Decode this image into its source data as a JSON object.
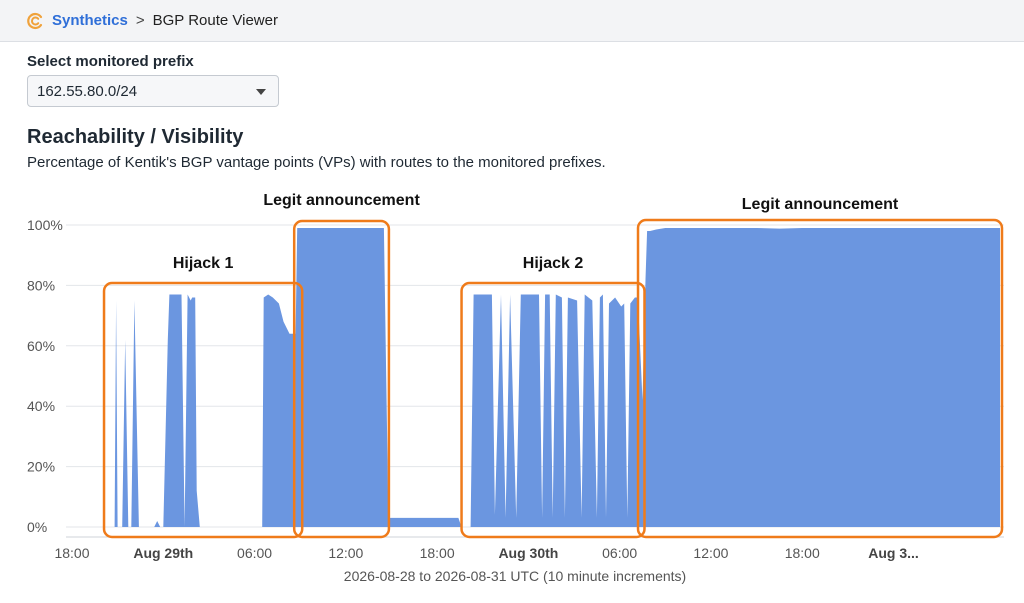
{
  "breadcrumb": {
    "app_label": "Synthetics",
    "separator": ">",
    "current": "BGP Route Viewer"
  },
  "prefix_select": {
    "label": "Select monitored prefix",
    "value": "162.55.80.0/24"
  },
  "section": {
    "title": "Reachability / Visibility",
    "description": "Percentage of Kentik's BGP vantage points (VPs) with routes to the monitored prefixes."
  },
  "colors": {
    "accent": "#2f6fd8",
    "area_fill": "#6b96e0",
    "highlight_border": "#ef7b1a",
    "grid": "#e3e6ea"
  },
  "chart_data": {
    "type": "area",
    "x_unit": "hours since 2026-08-28 18:00 UTC",
    "xlim": [
      0,
      61
    ],
    "ylim": [
      0,
      100
    ],
    "y_ticks": [
      "0%",
      "20%",
      "40%",
      "60%",
      "80%",
      "100%"
    ],
    "x_ticks": [
      {
        "x": 0,
        "label": "18:00",
        "bold": false
      },
      {
        "x": 6,
        "label": "Aug 29th",
        "bold": true
      },
      {
        "x": 12,
        "label": "06:00",
        "bold": false
      },
      {
        "x": 18,
        "label": "12:00",
        "bold": false
      },
      {
        "x": 24,
        "label": "18:00",
        "bold": false
      },
      {
        "x": 30,
        "label": "Aug 30th",
        "bold": true
      },
      {
        "x": 36,
        "label": "06:00",
        "bold": false
      },
      {
        "x": 42,
        "label": "12:00",
        "bold": false
      },
      {
        "x": 48,
        "label": "18:00",
        "bold": false
      },
      {
        "x": 54,
        "label": "Aug 3...",
        "bold": true
      }
    ],
    "caption": "2026-08-28 to 2026-08-31 UTC (10 minute increments)",
    "points": [
      [
        0,
        0
      ],
      [
        2.8,
        0
      ],
      [
        2.9,
        75
      ],
      [
        3.0,
        0
      ],
      [
        3.3,
        0
      ],
      [
        3.5,
        62
      ],
      [
        3.7,
        0
      ],
      [
        3.9,
        0
      ],
      [
        4.1,
        75
      ],
      [
        4.4,
        0
      ],
      [
        5.4,
        0
      ],
      [
        5.6,
        2
      ],
      [
        5.8,
        0
      ],
      [
        6.0,
        0
      ],
      [
        6.3,
        62
      ],
      [
        6.4,
        77
      ],
      [
        7.2,
        77
      ],
      [
        7.4,
        0
      ],
      [
        7.6,
        77
      ],
      [
        7.8,
        75
      ],
      [
        7.9,
        76
      ],
      [
        8.1,
        76
      ],
      [
        8.2,
        12
      ],
      [
        8.4,
        0
      ],
      [
        12.5,
        0
      ],
      [
        12.6,
        76
      ],
      [
        12.9,
        77
      ],
      [
        13.2,
        76
      ],
      [
        13.6,
        74
      ],
      [
        13.9,
        68
      ],
      [
        14.3,
        64
      ],
      [
        14.7,
        64
      ],
      [
        14.8,
        99
      ],
      [
        15.6,
        99
      ],
      [
        20.2,
        99
      ],
      [
        20.5,
        99
      ],
      [
        20.8,
        3
      ],
      [
        21.0,
        3
      ],
      [
        25.4,
        3
      ],
      [
        25.6,
        0
      ],
      [
        26.2,
        0
      ],
      [
        26.4,
        77
      ],
      [
        27.6,
        77
      ],
      [
        27.8,
        4
      ],
      [
        28.2,
        77
      ],
      [
        28.5,
        3
      ],
      [
        28.8,
        77
      ],
      [
        29.2,
        3
      ],
      [
        29.5,
        77
      ],
      [
        30.7,
        77
      ],
      [
        30.9,
        3
      ],
      [
        31.1,
        77
      ],
      [
        31.4,
        77
      ],
      [
        31.6,
        3
      ],
      [
        31.8,
        77
      ],
      [
        32.2,
        76
      ],
      [
        32.4,
        3
      ],
      [
        32.6,
        76
      ],
      [
        33.2,
        75
      ],
      [
        33.5,
        3
      ],
      [
        33.7,
        77
      ],
      [
        34.2,
        75
      ],
      [
        34.5,
        3
      ],
      [
        34.7,
        76
      ],
      [
        34.9,
        77
      ],
      [
        35.1,
        3
      ],
      [
        35.3,
        74
      ],
      [
        35.7,
        76
      ],
      [
        36.1,
        73
      ],
      [
        36.3,
        74
      ],
      [
        36.5,
        3
      ],
      [
        36.7,
        74
      ],
      [
        37.0,
        76
      ],
      [
        37.2,
        76
      ],
      [
        37.4,
        53
      ],
      [
        37.5,
        42
      ],
      [
        37.7,
        82
      ],
      [
        37.8,
        98
      ],
      [
        38.0,
        98
      ],
      [
        38.4,
        98.5
      ],
      [
        39.0,
        99
      ],
      [
        45.0,
        99
      ],
      [
        46.5,
        98.8
      ],
      [
        48,
        99
      ],
      [
        55,
        99
      ],
      [
        61,
        99
      ],
      [
        61,
        0
      ]
    ],
    "annotations": [
      {
        "label": "Hijack 1",
        "x0": 2.5,
        "x1": 15.0
      },
      {
        "label": "Legit announcement",
        "x0": 15.0,
        "x1": 20.7
      },
      {
        "label": "Hijack 2",
        "x0": 26.0,
        "x1": 37.5
      },
      {
        "label": "Legit announcement",
        "x0": 37.6,
        "x1": 61.0
      }
    ]
  }
}
